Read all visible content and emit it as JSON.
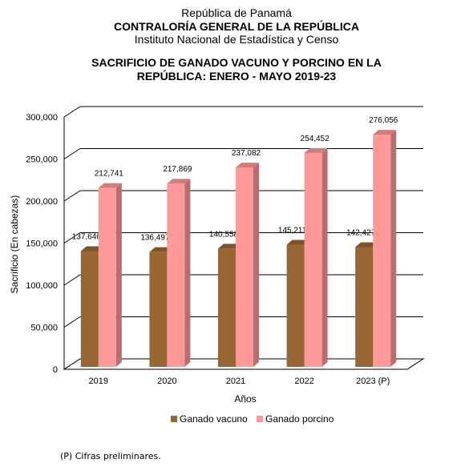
{
  "header": {
    "line1": "República de Panamá",
    "line2": "CONTRALORÍA GENERAL DE LA REPÚBLICA",
    "line3": "Instituto Nacional de Estadística y Censo"
  },
  "chart_data": {
    "type": "bar",
    "title_line1": "SACRIFICIO DE GANADO VACUNO Y PORCINO EN LA",
    "title_line2": "REPÚBLICA: ENERO - MAYO 2019-23",
    "xlabel": "Años",
    "ylabel": "Sacrificio (En cabezas)",
    "ylim": [
      0,
      300000
    ],
    "yticks": [
      0,
      50000,
      100000,
      150000,
      200000,
      250000,
      300000
    ],
    "ytick_labels": [
      "0",
      "50,000",
      "100,000",
      "150,000",
      "200,000",
      "250,000",
      "300,000"
    ],
    "categories": [
      "2019",
      "2020",
      "2021",
      "2022",
      "2023 (P)"
    ],
    "series": [
      {
        "name": "Ganado vacuno",
        "color": "#996633",
        "values": [
          137646,
          136497,
          140558,
          145211,
          142427
        ],
        "labels": [
          "137,646",
          "136,497",
          "140,558",
          "145,211",
          "142,427"
        ]
      },
      {
        "name": "Ganado porcino",
        "color": "#ff9999",
        "values": [
          212741,
          217869,
          237082,
          254452,
          276056
        ],
        "labels": [
          "212,741",
          "217,869",
          "237,082",
          "254,452",
          "276,056"
        ]
      }
    ],
    "grid": true,
    "legend_position": "bottom"
  },
  "footnote": "(P) Cifras preliminares."
}
